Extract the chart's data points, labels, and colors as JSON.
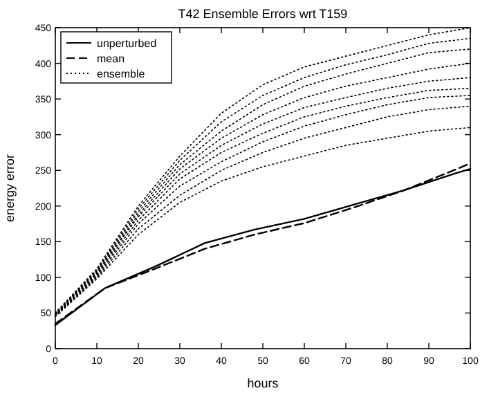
{
  "chart_data": {
    "type": "line",
    "title": "T42 Ensemble Errors wrt T159",
    "xlabel": "hours",
    "ylabel": "energy error",
    "xlim": [
      0,
      100
    ],
    "ylim": [
      0,
      450
    ],
    "xticks": [
      0,
      10,
      20,
      30,
      40,
      50,
      60,
      70,
      80,
      90,
      100
    ],
    "yticks": [
      0,
      50,
      100,
      150,
      200,
      250,
      300,
      350,
      400,
      450
    ],
    "legend": "top left",
    "grid": false,
    "marker": "none",
    "series": [
      {
        "name": "unperturbed",
        "color": "#000000",
        "line_style": "solid",
        "x": [
          0,
          12,
          24,
          36,
          48,
          60,
          72,
          84,
          96,
          100
        ],
        "values": [
          33,
          85,
          115,
          148,
          167,
          182,
          202,
          222,
          245,
          252
        ]
      },
      {
        "name": "mean",
        "color": "#000000",
        "line_style": "dashed",
        "x": [
          0,
          12,
          24,
          36,
          48,
          60,
          72,
          84,
          96,
          100
        ],
        "values": [
          35,
          85,
          112,
          140,
          160,
          176,
          198,
          222,
          250,
          260
        ]
      },
      {
        "name": "ensemble",
        "color": "#000000",
        "line_style": "dotted",
        "x": [
          0,
          10,
          20,
          30,
          40,
          50,
          60,
          70,
          80,
          90,
          100
        ],
        "values": [
          45,
          98,
          160,
          205,
          235,
          255,
          270,
          285,
          295,
          305,
          310
        ]
      },
      {
        "color": "#000000",
        "line_style": "dotted",
        "x": [
          0,
          10,
          20,
          30,
          40,
          50,
          60,
          70,
          80,
          90,
          100
        ],
        "values": [
          46,
          100,
          168,
          215,
          250,
          275,
          295,
          310,
          325,
          335,
          340
        ]
      },
      {
        "color": "#000000",
        "line_style": "dotted",
        "x": [
          0,
          10,
          20,
          30,
          40,
          50,
          60,
          70,
          80,
          90,
          100
        ],
        "values": [
          47,
          102,
          175,
          228,
          262,
          290,
          312,
          328,
          342,
          352,
          355
        ]
      },
      {
        "color": "#000000",
        "line_style": "dotted",
        "x": [
          0,
          10,
          20,
          30,
          40,
          50,
          60,
          70,
          80,
          90,
          100
        ],
        "values": [
          47,
          104,
          180,
          238,
          275,
          302,
          325,
          340,
          352,
          362,
          365
        ]
      },
      {
        "color": "#000000",
        "line_style": "dotted",
        "x": [
          0,
          10,
          20,
          30,
          40,
          50,
          60,
          70,
          80,
          90,
          100
        ],
        "values": [
          48,
          106,
          185,
          245,
          285,
          315,
          338,
          352,
          365,
          375,
          380
        ]
      },
      {
        "color": "#000000",
        "line_style": "dotted",
        "x": [
          0,
          10,
          20,
          30,
          40,
          50,
          60,
          70,
          80,
          90,
          100
        ],
        "values": [
          48,
          107,
          188,
          252,
          295,
          328,
          352,
          368,
          380,
          392,
          400
        ]
      },
      {
        "color": "#000000",
        "line_style": "dotted",
        "x": [
          0,
          10,
          20,
          30,
          40,
          50,
          60,
          70,
          80,
          90,
          100
        ],
        "values": [
          49,
          109,
          192,
          258,
          305,
          342,
          368,
          385,
          400,
          415,
          420
        ]
      },
      {
        "color": "#000000",
        "line_style": "dotted",
        "x": [
          0,
          10,
          20,
          30,
          40,
          50,
          60,
          70,
          80,
          90,
          100
        ],
        "values": [
          50,
          110,
          196,
          264,
          318,
          355,
          380,
          398,
          412,
          428,
          435
        ]
      },
      {
        "color": "#000000",
        "line_style": "dotted",
        "x": [
          0,
          10,
          20,
          30,
          40,
          50,
          60,
          70,
          80,
          90,
          100
        ],
        "values": [
          50,
          112,
          200,
          270,
          330,
          370,
          395,
          410,
          425,
          440,
          450
        ]
      }
    ]
  }
}
